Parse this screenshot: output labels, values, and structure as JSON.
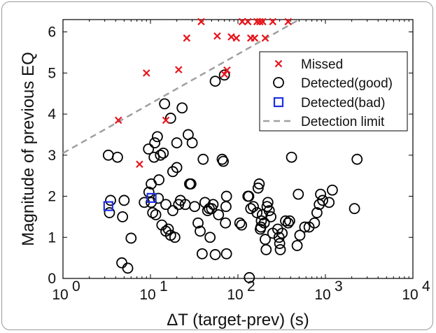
{
  "chart_data": {
    "type": "scatter",
    "xlabel": "ΔT (target-prev) (s)",
    "ylabel": "Magnitude of previous EQ",
    "xscale": "log",
    "xlim": [
      1,
      10000
    ],
    "ylim": [
      0,
      6.3
    ],
    "xticks": [
      1,
      10,
      100,
      1000,
      10000
    ],
    "xtick_labels": [
      {
        "base": "10",
        "exp": "0"
      },
      {
        "base": "10",
        "exp": "1"
      },
      {
        "base": "10",
        "exp": "2"
      },
      {
        "base": "10",
        "exp": "3"
      },
      {
        "base": "10",
        "exp": "4"
      }
    ],
    "yticks": [
      0,
      1,
      2,
      3,
      4,
      5,
      6
    ],
    "ytick_labels": [
      "0",
      "1",
      "2",
      "3",
      "4",
      "5",
      "6"
    ],
    "legend_position": "top-right",
    "series": [
      {
        "name": "Missed",
        "marker": "x",
        "color": "#e8141c",
        "points": [
          [
            4.3,
            3.85
          ],
          [
            7.5,
            2.78
          ],
          [
            9,
            5.0
          ],
          [
            15,
            3.85
          ],
          [
            21,
            5.08
          ],
          [
            26,
            5.85
          ],
          [
            38,
            6.25
          ],
          [
            58,
            5.9
          ],
          [
            70,
            4.97
          ],
          [
            75,
            5.07
          ],
          [
            84,
            5.88
          ],
          [
            96,
            5.85
          ],
          [
            112,
            6.25
          ],
          [
            130,
            6.25
          ],
          [
            140,
            5.85
          ],
          [
            155,
            5.85
          ],
          [
            165,
            6.25
          ],
          [
            178,
            6.25
          ],
          [
            192,
            6.25
          ],
          [
            205,
            5.85
          ],
          [
            250,
            6.25
          ],
          [
            375,
            6.25
          ]
        ]
      },
      {
        "name": "Detected(good)",
        "marker": "o",
        "color": "#000000",
        "points": [
          [
            3.3,
            3.0
          ],
          [
            4.2,
            2.95
          ],
          [
            3.4,
            1.6
          ],
          [
            3.5,
            1.9
          ],
          [
            4.8,
            1.5
          ],
          [
            5,
            1.9
          ],
          [
            4.7,
            0.38
          ],
          [
            5.5,
            0.25
          ],
          [
            6,
            0.98
          ],
          [
            8.5,
            1.85
          ],
          [
            9.5,
            3.15
          ],
          [
            9.6,
            2.1
          ],
          [
            10.2,
            1.85
          ],
          [
            10.6,
            1.6
          ],
          [
            10.2,
            2.3
          ],
          [
            11,
            2.95
          ],
          [
            11.2,
            3.3
          ],
          [
            11.5,
            1.55
          ],
          [
            12,
            3.45
          ],
          [
            12.3,
            1.95
          ],
          [
            12.5,
            2.4
          ],
          [
            13,
            3.0
          ],
          [
            13.5,
            1.3
          ],
          [
            14,
            3.05
          ],
          [
            14.5,
            4.25
          ],
          [
            15,
            1.8
          ],
          [
            15,
            1.15
          ],
          [
            16,
            1.2
          ],
          [
            17,
            3.9
          ],
          [
            17,
            1.05
          ],
          [
            18,
            2.6
          ],
          [
            18,
            1.65
          ],
          [
            19,
            1.0
          ],
          [
            20,
            3.3
          ],
          [
            20,
            2.7
          ],
          [
            21,
            1.8
          ],
          [
            22,
            1.9
          ],
          [
            23,
            4.15
          ],
          [
            25,
            1.8
          ],
          [
            27,
            3.5
          ],
          [
            28,
            2.3
          ],
          [
            29,
            2.3
          ],
          [
            30,
            3.3
          ],
          [
            32,
            1.75
          ],
          [
            35,
            1.35
          ],
          [
            37,
            1.15
          ],
          [
            39,
            0.6
          ],
          [
            40,
            2.9
          ],
          [
            42,
            1.85
          ],
          [
            45,
            1.65
          ],
          [
            47,
            1.7
          ],
          [
            48,
            1.0
          ],
          [
            50,
            1.7
          ],
          [
            52,
            1.8
          ],
          [
            55,
            4.8
          ],
          [
            55,
            0.58
          ],
          [
            60,
            1.55
          ],
          [
            66,
            2.9
          ],
          [
            68,
            2.85
          ],
          [
            70,
            4.95
          ],
          [
            72,
            1.35
          ],
          [
            73,
            1.75
          ],
          [
            74,
            2.0
          ],
          [
            74,
            0.6
          ],
          [
            105,
            1.35
          ],
          [
            110,
            1.3
          ],
          [
            130,
            2.0
          ],
          [
            133,
            2.0
          ],
          [
            135,
            0.02
          ],
          [
            140,
            1.7
          ],
          [
            150,
            1.75
          ],
          [
            165,
            1.6
          ],
          [
            170,
            2.2
          ],
          [
            175,
            2.3
          ],
          [
            180,
            1.2
          ],
          [
            183,
            1.25
          ],
          [
            185,
            1.4
          ],
          [
            190,
            1.55
          ],
          [
            200,
            1.35
          ],
          [
            205,
            0.95
          ],
          [
            210,
            0.7
          ],
          [
            215,
            1.75
          ],
          [
            220,
            1.85
          ],
          [
            228,
            1.65
          ],
          [
            238,
            1.5
          ],
          [
            250,
            1.1
          ],
          [
            285,
            1.2
          ],
          [
            295,
            1.0
          ],
          [
            300,
            0.85
          ],
          [
            305,
            0.7
          ],
          [
            320,
            1.1
          ],
          [
            350,
            1.4
          ],
          [
            375,
            1.35
          ],
          [
            390,
            1.4
          ],
          [
            410,
            2.95
          ],
          [
            475,
            0.8
          ],
          [
            490,
            2.05
          ],
          [
            510,
            1.05
          ],
          [
            580,
            1.25
          ],
          [
            650,
            1.25
          ],
          [
            750,
            1.35
          ],
          [
            800,
            1.6
          ],
          [
            850,
            1.8
          ],
          [
            880,
            2.05
          ],
          [
            930,
            1.9
          ],
          [
            1100,
            1.85
          ],
          [
            1200,
            2.15
          ],
          [
            2150,
            1.7
          ],
          [
            2300,
            2.9
          ]
        ]
      },
      {
        "name": "Detected(bad)",
        "marker": "s",
        "color": "#1f2fe0",
        "points": [
          [
            3.3,
            1.76
          ],
          [
            10.3,
            1.96
          ]
        ]
      },
      {
        "name": "Detection limit",
        "marker": "dashed",
        "color": "#a0a0a0",
        "line": [
          [
            1,
            3.05
          ],
          [
            500,
            6.3
          ]
        ]
      }
    ]
  }
}
